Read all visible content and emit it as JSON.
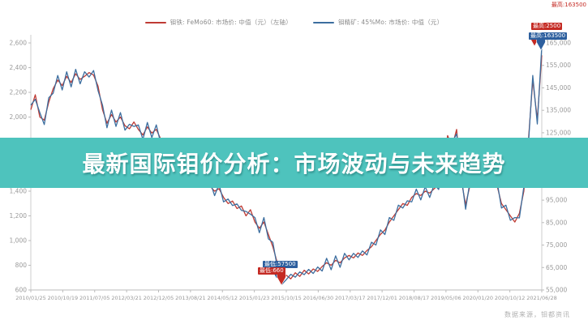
{
  "banner": {
    "title": "最新国际钼价分析：市场波动与未来趋势",
    "color": "#4ec3bd"
  },
  "legend": {
    "items": [
      {
        "label": "钼铁: FeMo60: 市场价: 中值（元）（左轴）",
        "color": "#bf3b34"
      },
      {
        "label": "钼精矿: 45%Mo: 市场价: 中值（元）",
        "color": "#3c6e9f"
      }
    ]
  },
  "annotations": {
    "corner_note": "最高:163500",
    "max_red": "最高:2500",
    "max_blue": "最高:163500",
    "min_blue": "最低:57500",
    "min_red": "最低:660"
  },
  "watermark": "数据来源，钼都资讯",
  "chart_data": {
    "type": "line",
    "title": "",
    "xlabel": "",
    "ylabel_left": "",
    "ylabel_right": "",
    "grid": false,
    "legend_position": "top-center",
    "x_tick_labels": [
      "2010/01/25",
      "2010/10/19",
      "2011/07/05",
      "2012/03/21",
      "2012/12/05",
      "2013/08/21",
      "2014/05/12",
      "2015/01/23",
      "2015/10/15",
      "2016/06/30",
      "2017/03/17",
      "2017/12/01",
      "2018/08/17",
      "2019/05/06",
      "2020/01/20",
      "2020/10/12",
      "2021/06/28"
    ],
    "left_axis": {
      "min": 600,
      "max": 2600,
      "tick_values": [
        2600,
        2400,
        2200,
        2000,
        1800,
        1600,
        1400,
        1200,
        1000,
        800,
        600
      ]
    },
    "right_axis": {
      "min": 55000,
      "max": 165000,
      "tick_values": [
        165000,
        155000,
        145000,
        135000,
        125000,
        115000,
        105000,
        95000,
        85000,
        75000,
        65000,
        55000
      ]
    },
    "series": [
      {
        "name": "钼铁: FeMo60: 市场价: 中值（元）（左轴）",
        "axis": "left",
        "color": "#bf3b34",
        "values": [
          2060,
          2180,
          2000,
          1975,
          2120,
          2230,
          2300,
          2255,
          2330,
          2280,
          2350,
          2305,
          2330,
          2360,
          2340,
          2250,
          2060,
          1950,
          2020,
          1960,
          2000,
          1930,
          1905,
          1960,
          1900,
          1855,
          1920,
          1870,
          1900,
          1820,
          1705,
          1720,
          1650,
          1600,
          1620,
          1560,
          1580,
          1520,
          1480,
          1505,
          1440,
          1400,
          1420,
          1350,
          1300,
          1320,
          1260,
          1280,
          1200,
          1250,
          1150,
          1100,
          1150,
          1050,
          950,
          820,
          660,
          720,
          690,
          740,
          710,
          760,
          730,
          770,
          750,
          790,
          820,
          800,
          840,
          820,
          860,
          880,
          860,
          900,
          880,
          920,
          950,
          1000,
          1050,
          1085,
          1150,
          1200,
          1250,
          1300,
          1285,
          1350,
          1380,
          1365,
          1400,
          1385,
          1420,
          1450,
          1600,
          1850,
          1760,
          1900,
          1500,
          1290,
          1450,
          1700,
          1755,
          1780,
          1700,
          1600,
          1450,
          1300,
          1250,
          1200,
          1150,
          1220,
          1400,
          1800,
          2300,
          1980,
          2500
        ]
      },
      {
        "name": "钼精矿: 45%Mo: 市场价: 中值（元）",
        "axis": "right",
        "color": "#3c6e9f",
        "values": [
          137300,
          139900,
          134000,
          128650,
          140600,
          142650,
          150500,
          144050,
          152150,
          145400,
          153250,
          146800,
          152150,
          149800,
          152700,
          143750,
          137300,
          127250,
          135100,
          127800,
          134000,
          126150,
          128800,
          127800,
          128500,
          122050,
          129600,
          122850,
          128500,
          120100,
          117800,
          114600,
          114750,
          108000,
          113100,
          105800,
          110900,
          103600,
          105400,
          102800,
          103200,
          97000,
          102100,
          94250,
          95500,
          92600,
          93300,
          90400,
          90000,
          88750,
          87250,
          80500,
          87250,
          77750,
          76250,
          65100,
          57500,
          59600,
          61950,
          60700,
          63050,
          61800,
          64150,
          62350,
          65250,
          63450,
          69100,
          64000,
          70200,
          65100,
          71300,
          68400,
          71300,
          69500,
          72400,
          70600,
          76250,
          75000,
          81750,
          79700,
          87250,
          86000,
          92750,
          91500,
          94700,
          94250,
          99900,
          95100,
          101000,
          96200,
          102100,
          99750,
          112000,
          121750,
          120800,
          124500,
          106500,
          90950,
          103750,
          113500,
          120550,
          117900,
          117500,
          108000,
          103750,
          91500,
          92750,
          86000,
          87250,
          87100,
          101000,
          119000,
          150500,
          128900,
          163500
        ]
      }
    ]
  }
}
